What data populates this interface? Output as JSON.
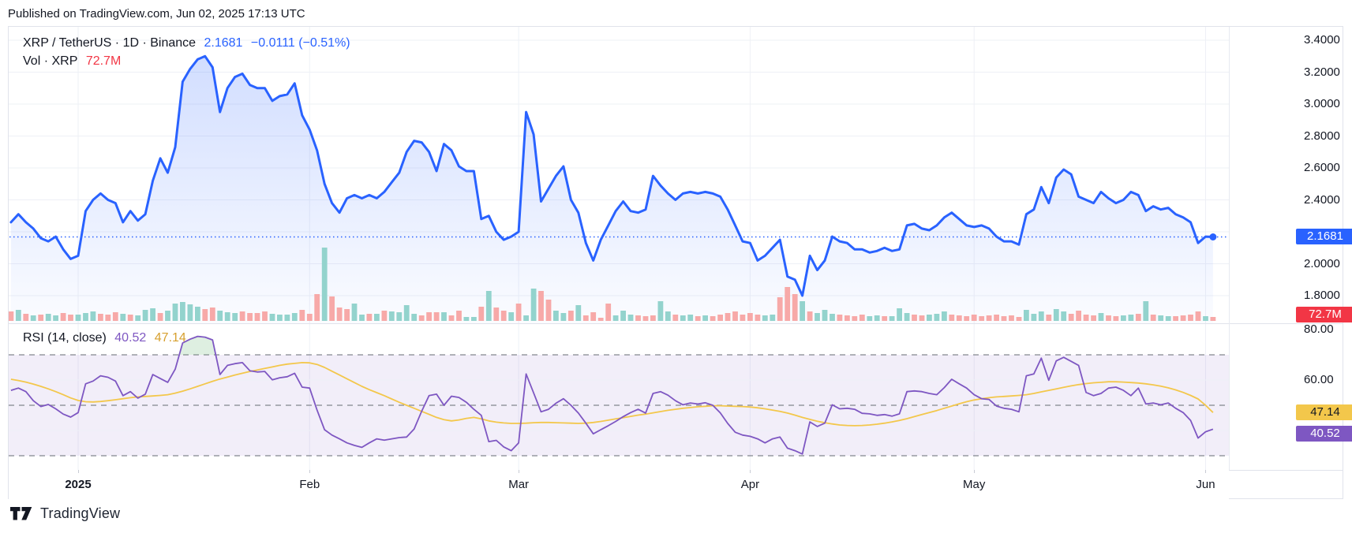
{
  "published": "Published on TradingView.com, Jun 02, 2025 17:13 UTC",
  "header": {
    "title": "XRP / TetherUS · 1D · Binance",
    "price": "2.1681",
    "change": "−0.0111 (−0.51%)"
  },
  "volume_legend": {
    "label": "Vol · XRP",
    "value": "72.7M"
  },
  "rsi_legend": {
    "label": "RSI (14, close)",
    "rsi_value": "40.52",
    "ma_value": "47.14"
  },
  "price_axis": {
    "ticks": [
      {
        "label": "3.4000",
        "value": 3.4
      },
      {
        "label": "3.2000",
        "value": 3.2
      },
      {
        "label": "3.0000",
        "value": 3.0
      },
      {
        "label": "2.8000",
        "value": 2.8
      },
      {
        "label": "2.6000",
        "value": 2.6
      },
      {
        "label": "2.4000",
        "value": 2.4
      },
      {
        "label": "2.0000",
        "value": 2.0
      },
      {
        "label": "1.8000",
        "value": 1.8
      }
    ],
    "current_badge": {
      "label": "2.1681",
      "value": 2.1681
    },
    "volume_badge": {
      "label": "72.7M"
    }
  },
  "rsi_axis": {
    "ticks": [
      {
        "label": "80.00",
        "value": 80
      },
      {
        "label": "60.00",
        "value": 60
      }
    ],
    "rsi_badge": {
      "label": "40.52",
      "value": 40.52
    },
    "ma_badge": {
      "label": "47.14",
      "value": 47.14
    }
  },
  "time_axis": [
    {
      "label": "2025",
      "day": 10,
      "bold": true
    },
    {
      "label": "Feb",
      "day": 41,
      "bold": false
    },
    {
      "label": "Mar",
      "day": 69,
      "bold": false
    },
    {
      "label": "Apr",
      "day": 100,
      "bold": false
    },
    {
      "label": "May",
      "day": 130,
      "bold": false
    },
    {
      "label": "Jun",
      "day": 161,
      "bold": false
    }
  ],
  "footer": {
    "brand": "TradingView"
  },
  "colors": {
    "blue": "#2962FF",
    "area_top": "rgba(41,98,255,0.21)",
    "area_bottom": "rgba(41,98,255,0.02)",
    "vol_up": "#93D3CD",
    "vol_down": "#F7A9A8",
    "purple": "#7E57C2",
    "gold": "#F3C74B",
    "red": "#F23645",
    "band": "rgba(126,87,194,0.10)",
    "band_line": "#83868F",
    "grid": "#EEF0F6",
    "overbought": "rgba(103,183,119,0.22)",
    "text": "#131722"
  },
  "chart_data": {
    "type": [
      "line",
      "bar",
      "line"
    ],
    "title": "XRP / TetherUS daily close with volume and RSI(14)",
    "x_unit": "trading day; index 1 = Dec 23 2024, 10 = Jan 1 2025, 41 = Feb 1, 69 = Mar 1, 100 = Apr 1, 130 = May 1, 162 = Jun 2 2025",
    "price": {
      "type": "line",
      "name": "XRP close (USDT)",
      "ylim": [
        1.63,
        3.49
      ],
      "last": 2.1681,
      "values": [
        2.26,
        2.31,
        2.26,
        2.22,
        2.16,
        2.14,
        2.17,
        2.09,
        2.03,
        2.05,
        2.33,
        2.4,
        2.44,
        2.4,
        2.38,
        2.26,
        2.33,
        2.27,
        2.31,
        2.52,
        2.66,
        2.57,
        2.73,
        3.14,
        3.22,
        3.28,
        3.3,
        3.23,
        2.95,
        3.1,
        3.17,
        3.19,
        3.12,
        3.1,
        3.1,
        3.02,
        3.05,
        3.06,
        3.13,
        2.93,
        2.84,
        2.71,
        2.5,
        2.38,
        2.32,
        2.41,
        2.43,
        2.41,
        2.43,
        2.41,
        2.45,
        2.51,
        2.57,
        2.7,
        2.77,
        2.76,
        2.7,
        2.58,
        2.75,
        2.71,
        2.61,
        2.58,
        2.58,
        2.28,
        2.3,
        2.2,
        2.15,
        2.17,
        2.2,
        2.95,
        2.81,
        2.39,
        2.47,
        2.55,
        2.61,
        2.4,
        2.32,
        2.13,
        2.02,
        2.15,
        2.24,
        2.33,
        2.39,
        2.33,
        2.32,
        2.34,
        2.55,
        2.49,
        2.44,
        2.4,
        2.44,
        2.45,
        2.44,
        2.45,
        2.44,
        2.42,
        2.34,
        2.24,
        2.14,
        2.13,
        2.02,
        2.05,
        2.1,
        2.15,
        1.92,
        1.9,
        1.8,
        2.05,
        1.96,
        2.02,
        2.17,
        2.14,
        2.13,
        2.09,
        2.09,
        2.07,
        2.08,
        2.1,
        2.08,
        2.09,
        2.24,
        2.25,
        2.22,
        2.21,
        2.24,
        2.29,
        2.32,
        2.28,
        2.24,
        2.23,
        2.24,
        2.22,
        2.17,
        2.14,
        2.14,
        2.12,
        2.31,
        2.34,
        2.48,
        2.38,
        2.54,
        2.59,
        2.56,
        2.42,
        2.4,
        2.38,
        2.45,
        2.41,
        2.38,
        2.4,
        2.45,
        2.43,
        2.33,
        2.36,
        2.34,
        2.35,
        2.31,
        2.29,
        2.26,
        2.13,
        2.17,
        2.1681
      ]
    },
    "volume": {
      "type": "bar",
      "name": "Volume · XRP",
      "unit": "relative bar height in px; suffix u = up day (teal), d = down day (red)",
      "last_label": "72.7M",
      "values": [
        "12d",
        "14u",
        "9d",
        "7u",
        "8d",
        "9u",
        "7u",
        "10d",
        "8d",
        "8u",
        "10u",
        "12u",
        "9d",
        "8d",
        "11d",
        "9u",
        "8d",
        "7u",
        "14u",
        "16u",
        "10d",
        "13u",
        "22u",
        "24u",
        "21u",
        "18u",
        "15d",
        "17d",
        "13u",
        "11u",
        "10u",
        "12d",
        "10d",
        "10d",
        "12d",
        "9u",
        "8u",
        "8u",
        "10u",
        "14d",
        "9d",
        "34d",
        "93u",
        "31d",
        "17d",
        "15d",
        "22u",
        "8u",
        "9d",
        "9u",
        "13d",
        "12u",
        "11u",
        "20u",
        "9u",
        "7d",
        "11d",
        "11d",
        "11u",
        "7d",
        "13d",
        "5u",
        "5u",
        "18d",
        "38u",
        "17d",
        "13d",
        "11u",
        "22d",
        "7u",
        "41u",
        "38d",
        "27d",
        "13u",
        "10u",
        "13d",
        "20u",
        "7d",
        "11d",
        "4d",
        "22d",
        "7u",
        "13u",
        "8u",
        "7d",
        "6d",
        "7d",
        "25u",
        "12u",
        "8d",
        "7u",
        "8u",
        "6d",
        "7u",
        "6d",
        "8d",
        "10d",
        "12d",
        "8d",
        "10d",
        "8d",
        "7u",
        "8u",
        "30d",
        "43d",
        "34d",
        "25u",
        "12d",
        "10u",
        "14u",
        "9u",
        "8d",
        "7d",
        "6d",
        "8d",
        "6u",
        "7u",
        "6d",
        "6u",
        "16u",
        "10u",
        "8d",
        "7d",
        "8u",
        "9u",
        "12u",
        "8d",
        "7d",
        "6d",
        "8d",
        "6d",
        "7d",
        "8d",
        "6d",
        "7d",
        "5d",
        "14u",
        "9u",
        "12u",
        "8d",
        "15u",
        "12u",
        "9d",
        "13d",
        "8d",
        "7d",
        "10u",
        "7d",
        "6d",
        "7u",
        "8u",
        "9d",
        "25u",
        "8d",
        "7u",
        "6u",
        "6d",
        "7d",
        "8d",
        "12d",
        "6u",
        "5d"
      ]
    },
    "rsi": {
      "type": "line",
      "name": "RSI (14, close)",
      "bands": [
        70,
        50,
        30
      ],
      "ylim": [
        12,
        90
      ],
      "last": 40.52,
      "values": [
        55.9,
        56.8,
        55.4,
        51.8,
        49.5,
        50.3,
        48.6,
        46.5,
        45.3,
        47.1,
        58.5,
        59.6,
        61.7,
        61.1,
        59.6,
        53.8,
        55.4,
        52.8,
        54.4,
        62.2,
        60.6,
        59.1,
        64.3,
        74.7,
        76.2,
        77.3,
        77.0,
        75.9,
        62.2,
        65.8,
        66.5,
        66.9,
        63.7,
        63.2,
        63.4,
        60.1,
        60.9,
        61.3,
        62.7,
        57.2,
        56.8,
        48.1,
        40.3,
        38.2,
        36.7,
        35.1,
        34.1,
        33.3,
        35.1,
        36.7,
        36.2,
        36.7,
        37.2,
        37.4,
        40.6,
        47.6,
        53.8,
        54.4,
        50.0,
        53.6,
        53.1,
        51.2,
        48.4,
        46.0,
        35.6,
        36.1,
        33.5,
        32.0,
        35.1,
        62.4,
        54.9,
        47.4,
        48.4,
        50.8,
        52.6,
        50.0,
        46.9,
        42.9,
        38.7,
        40.3,
        41.9,
        43.6,
        45.5,
        47.1,
        48.4,
        46.9,
        54.7,
        55.4,
        54.0,
        51.8,
        50.2,
        50.9,
        50.5,
        51.0,
        50.0,
        47.0,
        42.8,
        39.3,
        38.2,
        37.7,
        36.7,
        35.1,
        36.7,
        37.4,
        33.0,
        32.0,
        30.7,
        43.4,
        41.6,
        42.9,
        50.2,
        48.6,
        48.8,
        48.4,
        46.8,
        46.6,
        46.0,
        46.3,
        45.7,
        46.6,
        55.4,
        55.7,
        55.4,
        54.7,
        54.2,
        57.0,
        60.3,
        58.5,
        56.8,
        54.2,
        52.6,
        52.3,
        49.7,
        48.8,
        48.4,
        47.4,
        61.7,
        62.4,
        68.7,
        59.9,
        67.6,
        69.0,
        67.4,
        65.8,
        55.1,
        53.8,
        54.7,
        56.8,
        57.2,
        55.9,
        53.8,
        56.8,
        50.5,
        50.9,
        50.2,
        50.9,
        48.8,
        47.1,
        44.0,
        37.0,
        39.5,
        40.52
      ]
    },
    "rsi_ma": {
      "type": "line",
      "name": "RSI-based MA",
      "last": 47.14,
      "values": [
        60.3,
        59.8,
        59.2,
        58.4,
        57.5,
        56.5,
        55.4,
        54.2,
        52.9,
        51.9,
        51.4,
        51.3,
        51.5,
        51.8,
        52.2,
        52.6,
        53.0,
        53.3,
        53.5,
        53.7,
        53.9,
        54.2,
        54.8,
        55.6,
        56.5,
        57.5,
        58.5,
        59.5,
        60.4,
        61.2,
        62.0,
        62.7,
        63.4,
        64.0,
        64.6,
        65.2,
        65.8,
        66.3,
        66.6,
        66.9,
        66.8,
        66.2,
        65.0,
        63.5,
        62.0,
        60.5,
        59.0,
        57.5,
        56.2,
        55.0,
        53.8,
        52.5,
        51.2,
        50.0,
        48.8,
        47.6,
        46.4,
        45.2,
        44.3,
        43.8,
        44.2,
        44.8,
        45.2,
        44.6,
        43.8,
        43.3,
        43.0,
        42.8,
        42.8,
        42.9,
        43.1,
        43.2,
        43.2,
        43.1,
        43.0,
        42.9,
        42.8,
        42.9,
        43.2,
        43.6,
        44.1,
        44.6,
        45.1,
        45.6,
        46.1,
        46.5,
        47.0,
        47.5,
        48.0,
        48.4,
        48.8,
        49.1,
        49.4,
        49.6,
        49.8,
        49.8,
        49.7,
        49.6,
        49.5,
        49.3,
        49.0,
        48.6,
        48.1,
        47.6,
        46.9,
        46.1,
        45.2,
        44.4,
        43.7,
        43.1,
        42.6,
        42.2,
        42.0,
        41.9,
        42.0,
        42.2,
        42.5,
        42.9,
        43.4,
        44.0,
        44.7,
        45.5,
        46.3,
        47.1,
        47.9,
        48.8,
        49.7,
        50.6,
        51.4,
        52.1,
        52.6,
        53.0,
        53.3,
        53.5,
        53.7,
        53.9,
        54.2,
        54.7,
        55.3,
        55.9,
        56.5,
        57.1,
        57.7,
        58.2,
        58.6,
        58.9,
        59.1,
        59.3,
        59.3,
        59.2,
        59.0,
        58.8,
        58.5,
        58.1,
        57.6,
        56.9,
        56.1,
        55.1,
        53.9,
        52.5,
        50.0,
        47.14
      ]
    }
  }
}
